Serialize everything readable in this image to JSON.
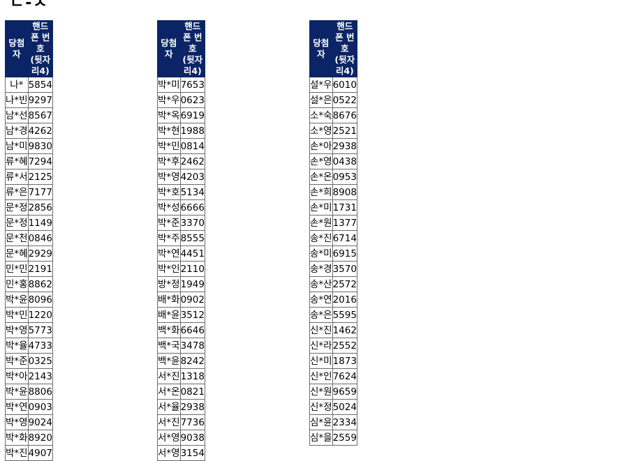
{
  "heading": "ㄴ-ㅅ",
  "headers": {
    "name": "당첨자",
    "phone_line1": "핸드폰 번호",
    "phone_line2": "(뒷자리4)"
  },
  "tables": [
    [
      [
        "나*",
        "5854"
      ],
      [
        "나*빈",
        "9297"
      ],
      [
        "남*선",
        "8567"
      ],
      [
        "남*경",
        "4262"
      ],
      [
        "남*미",
        "9830"
      ],
      [
        "류*혜",
        "7294"
      ],
      [
        "류*서",
        "2125"
      ],
      [
        "류*은",
        "7177"
      ],
      [
        "문*정",
        "2856"
      ],
      [
        "문*정",
        "1149"
      ],
      [
        "문*천",
        "0846"
      ],
      [
        "문*혜",
        "2929"
      ],
      [
        "민*민",
        "2191"
      ],
      [
        "민*홍",
        "8862"
      ],
      [
        "박*윤",
        "8096"
      ],
      [
        "박*민",
        "1220"
      ],
      [
        "박*영",
        "5773"
      ],
      [
        "박*율",
        "4733"
      ],
      [
        "박*준",
        "0325"
      ],
      [
        "박*아",
        "2143"
      ],
      [
        "박*윤",
        "8806"
      ],
      [
        "박*연",
        "0903"
      ],
      [
        "박*영",
        "9024"
      ],
      [
        "박*화",
        "8920"
      ],
      [
        "박*진",
        "4907"
      ]
    ],
    [
      [
        "박*미",
        "7653"
      ],
      [
        "박*우",
        "0623"
      ],
      [
        "박*옥",
        "6919"
      ],
      [
        "박*현",
        "1988"
      ],
      [
        "박*민",
        "0814"
      ],
      [
        "박*후",
        "2462"
      ],
      [
        "박*영",
        "4203"
      ],
      [
        "박*호",
        "5134"
      ],
      [
        "박*성",
        "6666"
      ],
      [
        "박*준",
        "3370"
      ],
      [
        "박*주",
        "8555"
      ],
      [
        "박*연",
        "4451"
      ],
      [
        "박*인",
        "2110"
      ],
      [
        "방*정",
        "1949"
      ],
      [
        "배*화",
        "0902"
      ],
      [
        "배*윤",
        "3512"
      ],
      [
        "백*화",
        "6646"
      ],
      [
        "백*국",
        "3478"
      ],
      [
        "백*윤",
        "8242"
      ],
      [
        "서*진",
        "1318"
      ],
      [
        "서*온",
        "0821"
      ],
      [
        "서*율",
        "2938"
      ],
      [
        "서*진",
        "7736"
      ],
      [
        "서*영",
        "9038"
      ],
      [
        "서*영",
        "3154"
      ]
    ],
    [
      [
        "설*우",
        "6010"
      ],
      [
        "설*은",
        "0522"
      ],
      [
        "소*숙",
        "8676"
      ],
      [
        "소*영",
        "2521"
      ],
      [
        "손*아",
        "2938"
      ],
      [
        "손*영",
        "0438"
      ],
      [
        "손*온",
        "0953"
      ],
      [
        "손*희",
        "8908"
      ],
      [
        "손*미",
        "1731"
      ],
      [
        "손*원",
        "1377"
      ],
      [
        "송*진",
        "6714"
      ],
      [
        "송*미",
        "6915"
      ],
      [
        "송*경",
        "3570"
      ],
      [
        "송*산",
        "2572"
      ],
      [
        "송*연",
        "2016"
      ],
      [
        "송*은",
        "5595"
      ],
      [
        "신*진",
        "1462"
      ],
      [
        "신*라",
        "2552"
      ],
      [
        "신*미",
        "1873"
      ],
      [
        "신*인",
        "7624"
      ],
      [
        "신*원",
        "9659"
      ],
      [
        "신*정",
        "5024"
      ],
      [
        "심*윤",
        "2334"
      ],
      [
        "심*을",
        "2559"
      ]
    ]
  ]
}
